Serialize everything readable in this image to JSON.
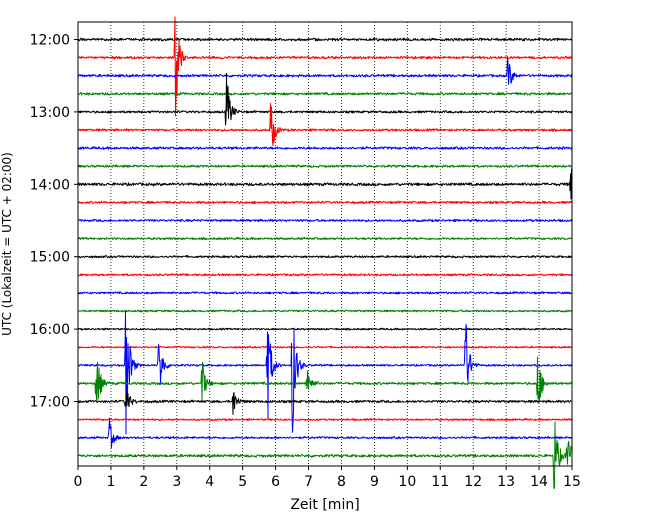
{
  "chart_data": {
    "type": "line",
    "plot_kind": "helicorder",
    "xlabel": "Zeit  [min]",
    "ylabel": "UTC (Lokalzeit = UTC + 02:00)",
    "xlim": [
      0,
      15
    ],
    "x_ticks": [
      0,
      1,
      2,
      3,
      4,
      5,
      6,
      7,
      8,
      9,
      10,
      11,
      12,
      13,
      14,
      15
    ],
    "x_tick_labels": [
      "0",
      "1",
      "2",
      "3",
      "4",
      "5",
      "6",
      "7",
      "8",
      "9",
      "10",
      "11",
      "12",
      "13",
      "14",
      "15"
    ],
    "vertical_grid": true,
    "grid_style": "dotted",
    "trace_minutes": 15,
    "trace_count": 24,
    "start_time": "12:00",
    "y_tick_labels": [
      "12:00",
      "13:00",
      "14:00",
      "15:00",
      "16:00",
      "17:00"
    ],
    "y_tick_trace_index": [
      0,
      4,
      8,
      12,
      16,
      20
    ],
    "color_cycle": [
      "#000000",
      "#ff0000",
      "#0000ff",
      "#008000"
    ],
    "background_noise": [
      0.28,
      0.26,
      0.26,
      0.26,
      0.24,
      0.24,
      0.26,
      0.24,
      0.3,
      0.24,
      0.24,
      0.22,
      0.22,
      0.22,
      0.22,
      0.2,
      0.18,
      0.18,
      0.2,
      0.26,
      0.26,
      0.2,
      0.22,
      0.28
    ],
    "events": [
      {
        "trace": 1,
        "minute": 2.95,
        "amplitude": 2.8
      },
      {
        "trace": 2,
        "minute": 13.05,
        "amplitude": 0.9
      },
      {
        "trace": 4,
        "minute": 4.5,
        "amplitude": 1.8
      },
      {
        "trace": 5,
        "minute": 5.85,
        "amplitude": 1.4
      },
      {
        "trace": 8,
        "minute": 14.95,
        "amplitude": 0.9
      },
      {
        "trace": 18,
        "minute": 1.45,
        "amplitude": 3.3
      },
      {
        "trace": 18,
        "minute": 2.45,
        "amplitude": 1.6
      },
      {
        "trace": 18,
        "minute": 5.75,
        "amplitude": 2.6
      },
      {
        "trace": 18,
        "minute": 6.5,
        "amplitude": 3.3
      },
      {
        "trace": 18,
        "minute": 11.75,
        "amplitude": 2.5
      },
      {
        "trace": 19,
        "minute": 0.55,
        "amplitude": 1.7
      },
      {
        "trace": 19,
        "minute": 3.75,
        "amplitude": 1.2
      },
      {
        "trace": 19,
        "minute": 6.95,
        "amplitude": 0.9
      },
      {
        "trace": 19,
        "minute": 13.95,
        "amplitude": 1.6
      },
      {
        "trace": 20,
        "minute": 1.45,
        "amplitude": 0.8
      },
      {
        "trace": 20,
        "minute": 4.7,
        "amplitude": 0.7
      },
      {
        "trace": 22,
        "minute": 0.95,
        "amplitude": 0.8
      },
      {
        "trace": 23,
        "minute": 14.45,
        "amplitude": 2.2
      },
      {
        "trace": 23,
        "minute": 14.85,
        "amplitude": 1.3
      }
    ]
  }
}
